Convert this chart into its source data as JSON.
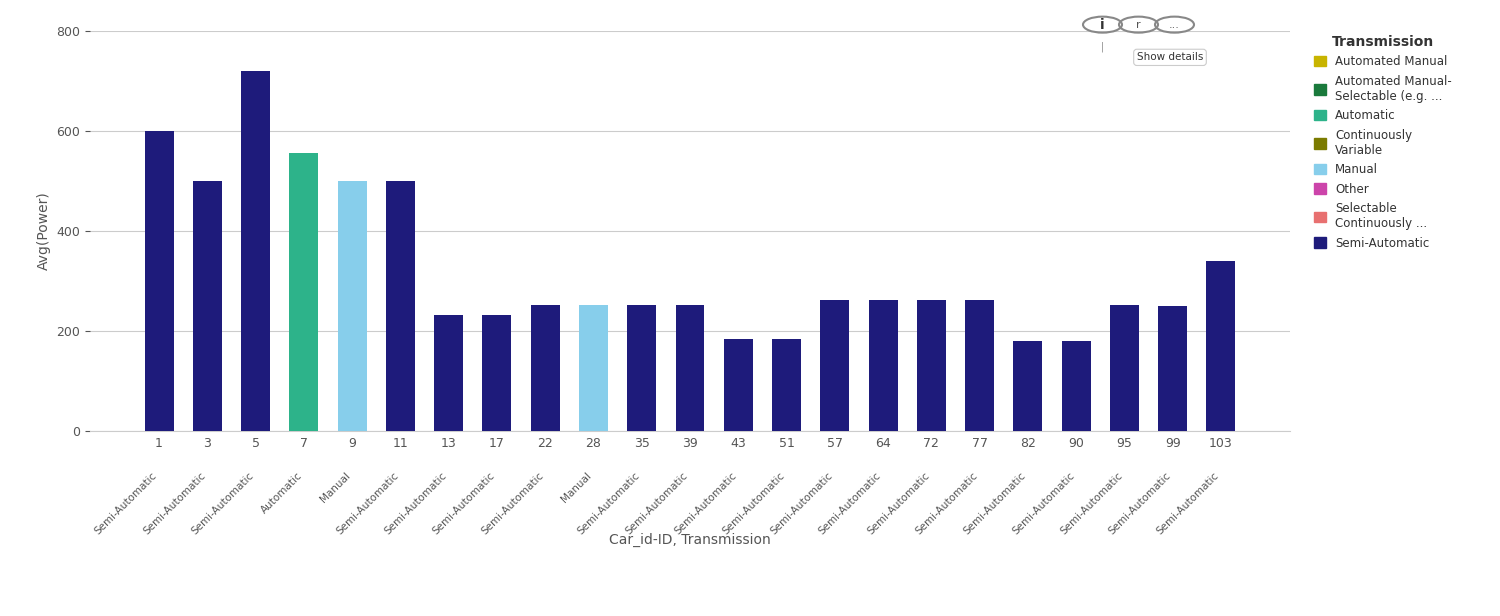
{
  "bars": [
    {
      "id": "1",
      "transmission": "Semi-Automatic",
      "value": 600,
      "color": "#1E1B7B"
    },
    {
      "id": "3",
      "transmission": "Semi-Automatic",
      "value": 500,
      "color": "#1E1B7B"
    },
    {
      "id": "5",
      "transmission": "Semi-Automatic",
      "value": 720,
      "color": "#1E1B7B"
    },
    {
      "id": "7",
      "transmission": "Automatic",
      "value": 555,
      "color": "#2DB38A"
    },
    {
      "id": "9",
      "transmission": "Manual",
      "value": 500,
      "color": "#87CEEB"
    },
    {
      "id": "11",
      "transmission": "Semi-Automatic",
      "value": 500,
      "color": "#1E1B7B"
    },
    {
      "id": "13",
      "transmission": "Semi-Automatic",
      "value": 232,
      "color": "#1E1B7B"
    },
    {
      "id": "17",
      "transmission": "Semi-Automatic",
      "value": 232,
      "color": "#1E1B7B"
    },
    {
      "id": "22",
      "transmission": "Semi-Automatic",
      "value": 252,
      "color": "#1E1B7B"
    },
    {
      "id": "28",
      "transmission": "Manual",
      "value": 252,
      "color": "#87CEEB"
    },
    {
      "id": "35",
      "transmission": "Semi-Automatic",
      "value": 252,
      "color": "#1E1B7B"
    },
    {
      "id": "39",
      "transmission": "Semi-Automatic",
      "value": 252,
      "color": "#1E1B7B"
    },
    {
      "id": "43",
      "transmission": "Semi-Automatic",
      "value": 185,
      "color": "#1E1B7B"
    },
    {
      "id": "51",
      "transmission": "Semi-Automatic",
      "value": 185,
      "color": "#1E1B7B"
    },
    {
      "id": "57",
      "transmission": "Semi-Automatic",
      "value": 262,
      "color": "#1E1B7B"
    },
    {
      "id": "64",
      "transmission": "Semi-Automatic",
      "value": 262,
      "color": "#1E1B7B"
    },
    {
      "id": "72",
      "transmission": "Semi-Automatic",
      "value": 262,
      "color": "#1E1B7B"
    },
    {
      "id": "77",
      "transmission": "Semi-Automatic",
      "value": 262,
      "color": "#1E1B7B"
    },
    {
      "id": "82",
      "transmission": "Semi-Automatic",
      "value": 180,
      "color": "#1E1B7B"
    },
    {
      "id": "90",
      "transmission": "Semi-Automatic",
      "value": 180,
      "color": "#1E1B7B"
    },
    {
      "id": "95",
      "transmission": "Semi-Automatic",
      "value": 252,
      "color": "#1E1B7B"
    },
    {
      "id": "99",
      "transmission": "Semi-Automatic",
      "value": 250,
      "color": "#1E1B7B"
    },
    {
      "id": "103",
      "transmission": "Semi-Automatic",
      "value": 340,
      "color": "#1E1B7B"
    }
  ],
  "ylabel": "Avg(Power)",
  "xlabel": "Car_id-ID, Transmission",
  "ylim": [
    0,
    800
  ],
  "yticks": [
    0,
    200,
    400,
    600,
    800
  ],
  "background_color": "#FFFFFF",
  "grid_color": "#CCCCCC",
  "legend_title": "Transmission",
  "legend_items": [
    {
      "label": "Automated Manual",
      "color": "#C8B400"
    },
    {
      "label": "Automated Manual-\nSelectable (e.g. ...",
      "color": "#1A7A3C"
    },
    {
      "label": "Automatic",
      "color": "#2DB38A"
    },
    {
      "label": "Continuously\nVariable",
      "color": "#7B7B00"
    },
    {
      "label": "Manual",
      "color": "#87CEEB"
    },
    {
      "label": "Other",
      "color": "#CC44AA"
    },
    {
      "label": "Selectable\nContinuously ...",
      "color": "#E87070"
    },
    {
      "label": "Semi-Automatic",
      "color": "#1E1B7B"
    }
  ]
}
